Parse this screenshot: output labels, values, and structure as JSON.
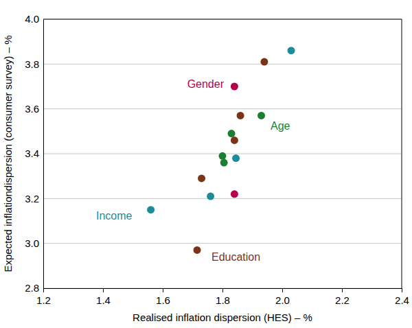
{
  "chart_data": {
    "type": "scatter",
    "x_label": "Realised inflation dispersion (HES) – %",
    "y_label": "Expected inflationdispersion (consumer survey) – %",
    "xlim": [
      1.2,
      2.4
    ],
    "xticks": [
      1.2,
      1.4,
      1.6,
      1.8,
      {
        "value": 2,
        "label": "2.0"
      },
      2.2,
      2.4
    ],
    "ylim": [
      2.8,
      4
    ],
    "yticks": [
      2.8,
      {
        "value": 3,
        "label": "3.0"
      },
      3.2,
      3.4,
      3.6,
      3.8,
      {
        "value": 4,
        "label": "4.0"
      }
    ],
    "grid": true,
    "marker": "circle",
    "series": [
      {
        "name": "Gender",
        "color": "#b5004b",
        "x": [
          1.84,
          1.84
        ],
        "values": [
          3.7,
          3.22
        ]
      },
      {
        "name": "Age",
        "color": "#1a8031",
        "x": [
          1.93,
          1.83,
          1.8,
          1.805
        ],
        "values": [
          3.57,
          3.49,
          3.39,
          3.36
        ]
      },
      {
        "name": "Income",
        "color": "#1c8b9a",
        "x": [
          2.03,
          1.845,
          1.76,
          1.56
        ],
        "values": [
          3.86,
          3.38,
          3.21,
          3.15
        ]
      },
      {
        "name": "Education",
        "color": "#7b3417",
        "x": [
          1.94,
          1.86,
          1.84,
          1.73,
          1.715
        ],
        "values": [
          3.81,
          3.57,
          3.46,
          3.29,
          2.97
        ]
      }
    ]
  }
}
